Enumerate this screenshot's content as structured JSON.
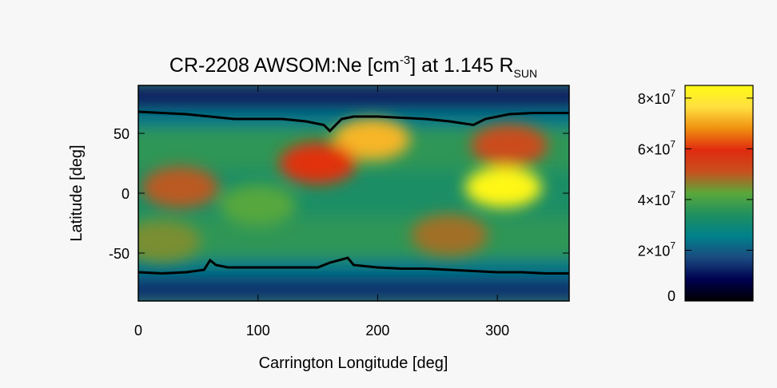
{
  "chart_data": {
    "type": "heatmap",
    "title": {
      "prefix": "CR-2208 AWSOM:Ne [cm",
      "exponent": "-3",
      "middle": "] at 1.145 R",
      "subscript": "SUN"
    },
    "xlabel": "Carrington Longitude [deg]",
    "ylabel": "Latitude [deg]",
    "xlim": [
      0,
      360
    ],
    "ylim": [
      -90,
      90
    ],
    "x_ticks": [
      0,
      100,
      200,
      300
    ],
    "y_ticks": [
      50,
      0,
      -50
    ],
    "colorbar": {
      "range": [
        0,
        85000000
      ],
      "ticks": [
        {
          "value": 0,
          "mantissa": "0",
          "exponent": ""
        },
        {
          "value": 20000000,
          "mantissa": "2×10",
          "exponent": "7"
        },
        {
          "value": 40000000,
          "mantissa": "4×10",
          "exponent": "7"
        },
        {
          "value": 60000000,
          "mantissa": "6×10",
          "exponent": "7"
        },
        {
          "value": 80000000,
          "mantissa": "8×10",
          "exponent": "7"
        }
      ],
      "colors": [
        "#000000",
        "#00004f",
        "#1b4a80",
        "#00808a",
        "#1f9060",
        "#5aa83a",
        "#c8501e",
        "#e02a10",
        "#f09010",
        "#ffe040",
        "#fffa14"
      ]
    },
    "hotspots": [
      {
        "name": "yellow-core-northeast",
        "lon": 195,
        "lat": 45,
        "value": 72000000
      },
      {
        "name": "orange-band-north",
        "lon": 150,
        "lat": 25,
        "value": 60000000
      },
      {
        "name": "yellow-core-east",
        "lon": 305,
        "lat": 5,
        "value": 84000000
      },
      {
        "name": "red-band-northwest",
        "lon": 310,
        "lat": 40,
        "value": 52000000
      },
      {
        "name": "red-band-south",
        "lon": 260,
        "lat": -35,
        "value": 48000000
      },
      {
        "name": "red-band-southwest",
        "lon": 20,
        "lat": -40,
        "value": 45000000
      },
      {
        "name": "orange-patch-west",
        "lon": 35,
        "lat": 5,
        "value": 50000000
      },
      {
        "name": "red-patch-central",
        "lon": 100,
        "lat": -10,
        "value": 42000000
      }
    ],
    "polarity_lines": {
      "north_boundary": [
        [
          0,
          68
        ],
        [
          20,
          67
        ],
        [
          40,
          66
        ],
        [
          60,
          64
        ],
        [
          80,
          62
        ],
        [
          100,
          62
        ],
        [
          120,
          62
        ],
        [
          140,
          60
        ],
        [
          155,
          57
        ],
        [
          160,
          52
        ],
        [
          165,
          57
        ],
        [
          170,
          62
        ],
        [
          180,
          64
        ],
        [
          200,
          64
        ],
        [
          220,
          63
        ],
        [
          240,
          62
        ],
        [
          260,
          60
        ],
        [
          280,
          57
        ],
        [
          290,
          62
        ],
        [
          310,
          66
        ],
        [
          330,
          67
        ],
        [
          350,
          67
        ],
        [
          360,
          67
        ]
      ],
      "south_boundary": [
        [
          0,
          -66
        ],
        [
          20,
          -67
        ],
        [
          40,
          -66
        ],
        [
          55,
          -64
        ],
        [
          60,
          -56
        ],
        [
          65,
          -60
        ],
        [
          75,
          -62
        ],
        [
          100,
          -62
        ],
        [
          125,
          -62
        ],
        [
          150,
          -62
        ],
        [
          160,
          -58
        ],
        [
          175,
          -54
        ],
        [
          180,
          -60
        ],
        [
          200,
          -62
        ],
        [
          220,
          -63
        ],
        [
          240,
          -63
        ],
        [
          260,
          -64
        ],
        [
          280,
          -65
        ],
        [
          300,
          -66
        ],
        [
          320,
          -66
        ],
        [
          340,
          -67
        ],
        [
          360,
          -67
        ]
      ]
    }
  }
}
